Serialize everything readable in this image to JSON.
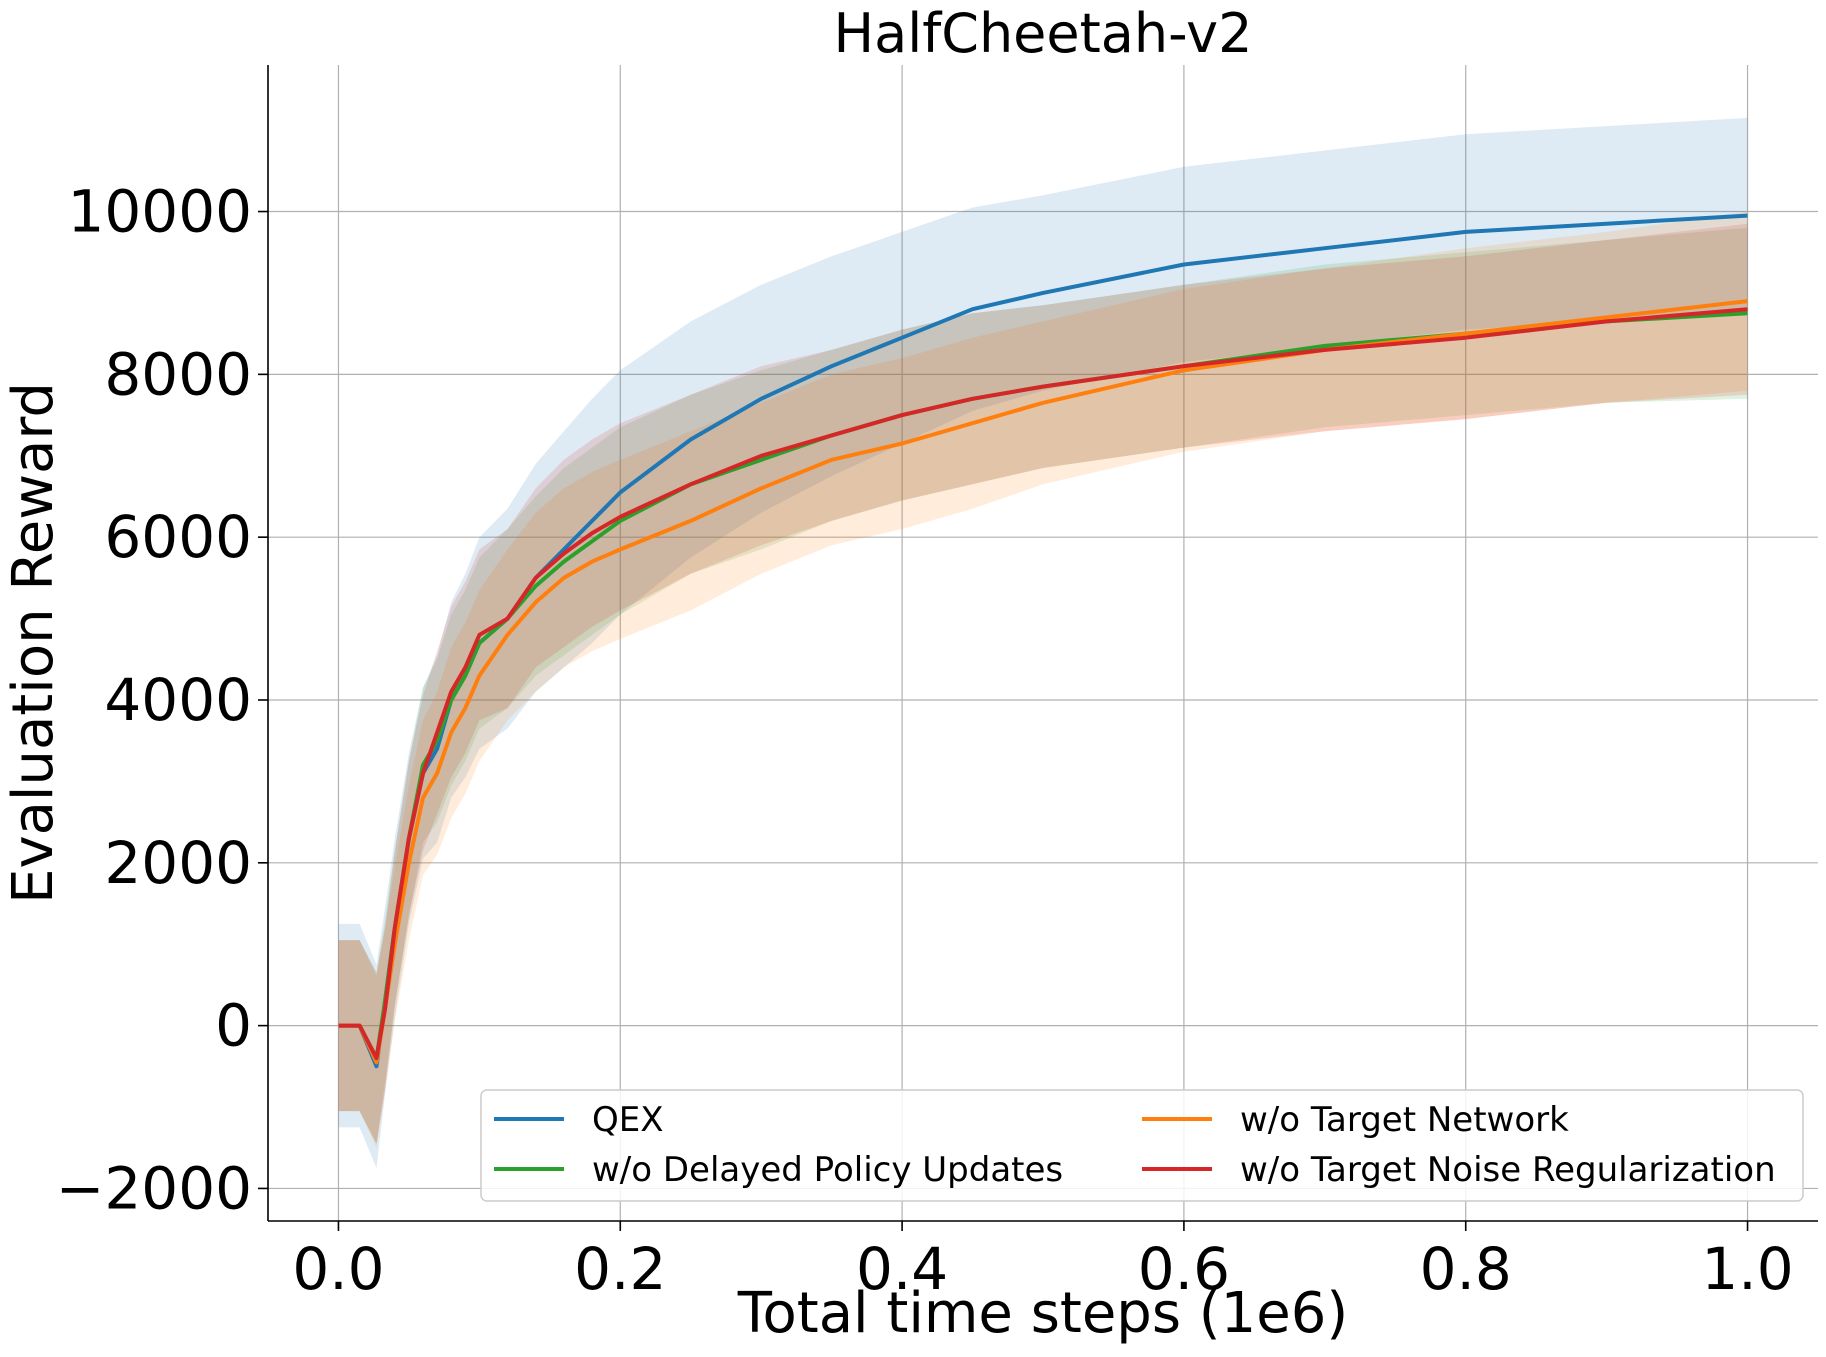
{
  "chart_data": {
    "type": "line",
    "title": "HalfCheetah-v2",
    "xlabel": "Total time steps (1e6)",
    "ylabel": "Evaluation Reward",
    "xlim": [
      -0.05,
      1.05
    ],
    "ylim": [
      -2400,
      11800
    ],
    "xticks": [
      0.0,
      0.2,
      0.4,
      0.6,
      0.8,
      1.0
    ],
    "xtick_labels": [
      "0.0",
      "0.2",
      "0.4",
      "0.6",
      "0.8",
      "1.0"
    ],
    "yticks": [
      -2000,
      0,
      2000,
      4000,
      6000,
      8000,
      10000
    ],
    "ytick_labels": [
      "−2000",
      "0",
      "2000",
      "4000",
      "6000",
      "8000",
      "10000"
    ],
    "grid": true,
    "legend_position": "lower-right",
    "legend_columns": 2,
    "x": [
      0.0,
      0.015,
      0.027,
      0.033,
      0.04,
      0.05,
      0.06,
      0.07,
      0.08,
      0.09,
      0.1,
      0.12,
      0.14,
      0.16,
      0.18,
      0.2,
      0.25,
      0.3,
      0.35,
      0.4,
      0.45,
      0.5,
      0.6,
      0.7,
      0.8,
      0.9,
      1.0
    ],
    "series": [
      {
        "name": "QEX",
        "color": "#1f77b4",
        "values": [
          0,
          0,
          -500,
          300,
          1200,
          2300,
          3100,
          3400,
          4000,
          4300,
          4700,
          5000,
          5500,
          5850,
          6200,
          6550,
          7200,
          7700,
          8100,
          8450,
          8800,
          9000,
          9350,
          9550,
          9750,
          9850,
          9950
        ],
        "band_width": [
          1250,
          1250,
          1250,
          1150,
          1100,
          1050,
          1050,
          1150,
          1200,
          1250,
          1300,
          1350,
          1400,
          1450,
          1500,
          1500,
          1450,
          1400,
          1350,
          1300,
          1250,
          1200,
          1200,
          1200,
          1200,
          1200,
          1200
        ]
      },
      {
        "name": "w/o Delayed Policy Updates",
        "color": "#2ca02c",
        "values": [
          0,
          0,
          -400,
          300,
          1200,
          2300,
          3200,
          3500,
          4000,
          4300,
          4700,
          5000,
          5400,
          5700,
          5950,
          6200,
          6650,
          6950,
          7250,
          7500,
          7700,
          7850,
          8100,
          8350,
          8500,
          8650,
          8750
        ],
        "band_width": [
          1050,
          1050,
          1050,
          1000,
          950,
          950,
          950,
          1000,
          1050,
          1050,
          1050,
          1100,
          1100,
          1150,
          1150,
          1150,
          1100,
          1100,
          1050,
          1050,
          1050,
          1000,
          1000,
          1000,
          1000,
          1000,
          1050
        ]
      },
      {
        "name": "w/o Target Network",
        "color": "#ff7f0e",
        "values": [
          0,
          0,
          -450,
          200,
          1000,
          2000,
          2800,
          3100,
          3600,
          3900,
          4300,
          4800,
          5200,
          5500,
          5700,
          5850,
          6200,
          6600,
          6950,
          7150,
          7400,
          7650,
          8050,
          8300,
          8500,
          8700,
          8900
        ],
        "band_width": [
          1050,
          1050,
          1050,
          1000,
          950,
          950,
          950,
          1000,
          1050,
          1050,
          1050,
          1050,
          1100,
          1100,
          1100,
          1100,
          1100,
          1050,
          1050,
          1050,
          1050,
          1000,
          1000,
          1000,
          1050,
          1050,
          1100
        ]
      },
      {
        "name": "w/o Target Noise Regularization",
        "color": "#d62728",
        "values": [
          0,
          0,
          -400,
          200,
          1200,
          2300,
          3100,
          3600,
          4100,
          4400,
          4800,
          5000,
          5500,
          5800,
          6050,
          6250,
          6650,
          7000,
          7250,
          7500,
          7700,
          7850,
          8100,
          8300,
          8450,
          8650,
          8800
        ],
        "band_width": [
          1050,
          1050,
          1050,
          1000,
          950,
          950,
          950,
          1000,
          1050,
          1050,
          1050,
          1100,
          1100,
          1150,
          1150,
          1150,
          1100,
          1100,
          1050,
          1050,
          1050,
          1000,
          1000,
          1000,
          1000,
          1000,
          1050
        ]
      }
    ]
  }
}
